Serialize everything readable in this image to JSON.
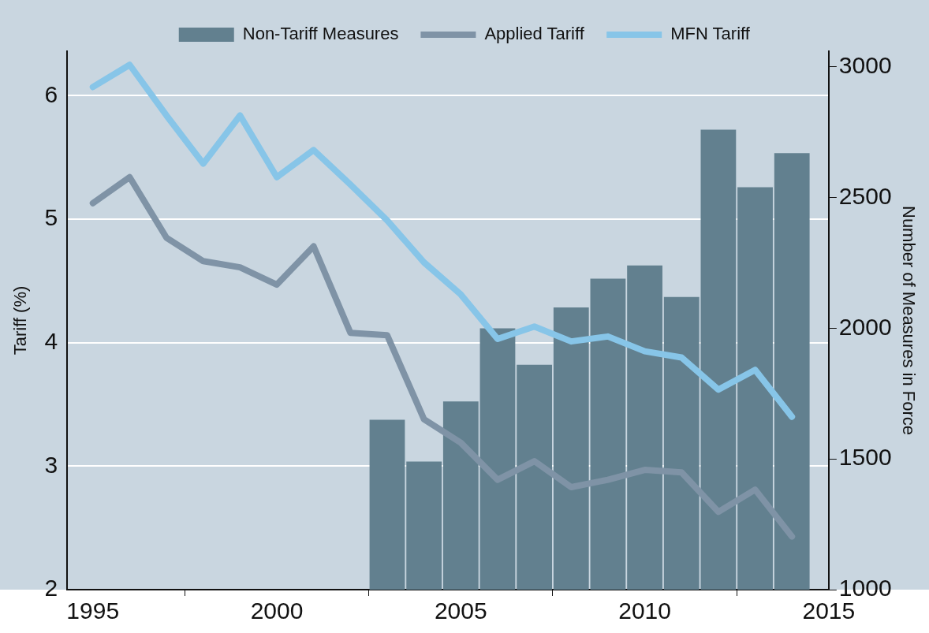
{
  "chart_data": {
    "type": "line",
    "ylabel": "Tariff (%)",
    "y2label": "Number of Measures in Force",
    "x": [
      1995,
      1996,
      1997,
      1998,
      1999,
      2000,
      2001,
      2002,
      2003,
      2004,
      2005,
      2006,
      2007,
      2008,
      2009,
      2010,
      2011,
      2012,
      2013,
      2014
    ],
    "series": [
      {
        "name": "Non-Tariff Measures",
        "type": "bar",
        "axis": "y2",
        "color": "#62808f",
        "values": [
          null,
          null,
          null,
          null,
          null,
          null,
          null,
          null,
          1650,
          1490,
          1720,
          2000,
          1860,
          2080,
          2190,
          2240,
          2120,
          2760,
          2540,
          2670
        ]
      },
      {
        "name": "Applied Tariff",
        "color": "#7f93a6",
        "values": [
          5.13,
          5.34,
          4.85,
          4.66,
          4.61,
          4.47,
          4.78,
          4.08,
          4.06,
          3.38,
          3.19,
          2.89,
          3.04,
          2.83,
          2.89,
          2.97,
          2.95,
          2.63,
          2.81,
          2.43
        ]
      },
      {
        "name": "MFN Tariff",
        "color": "#87c5e8",
        "values": [
          6.07,
          6.25,
          5.84,
          5.45,
          5.84,
          5.34,
          5.56,
          5.28,
          4.99,
          4.65,
          4.39,
          4.03,
          4.13,
          4.01,
          4.05,
          3.93,
          3.88,
          3.62,
          3.78,
          3.4
        ]
      }
    ],
    "xlim": [
      1994.3,
      2015
    ],
    "xticks": [
      1995,
      2000,
      2005,
      2010,
      2015
    ],
    "ylim": [
      2,
      6.36
    ],
    "yticks": [
      2,
      3,
      4,
      5,
      6
    ],
    "y2lim": [
      1000,
      3060
    ],
    "y2ticks": [
      1000,
      1500,
      2000,
      2500,
      3000
    ],
    "grid": "y",
    "legend": "top"
  }
}
